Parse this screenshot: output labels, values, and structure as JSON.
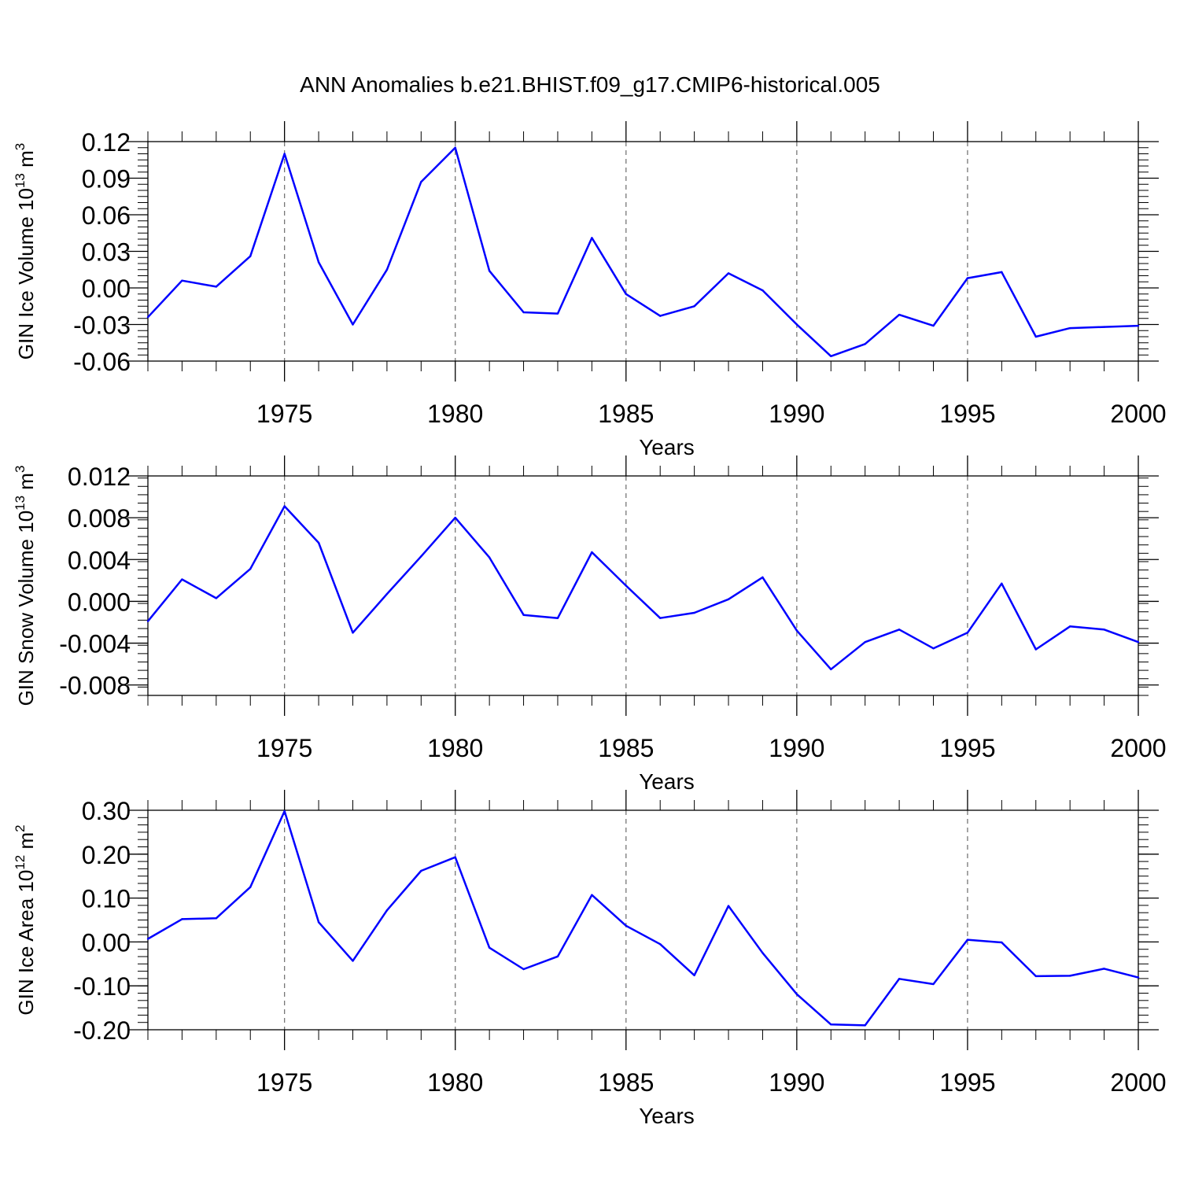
{
  "title": "ANN Anomalies b.e21.BHIST.f09_g17.CMIP6-historical.005",
  "colors": {
    "series": "#0000ff",
    "axes": "#000000",
    "grid": "#777777"
  },
  "chart_data": [
    {
      "type": "line",
      "ylabel": {
        "base": "GIN Ice Volume 10",
        "exp1": "13",
        "unit": " m",
        "exp2": "3"
      },
      "xlabel": "Years",
      "xlim": [
        1971,
        2000
      ],
      "ylim": [
        -0.06,
        0.12
      ],
      "yticks": [
        "0.12",
        "0.09",
        "0.06",
        "0.03",
        "0.00",
        "-0.03",
        "-0.06"
      ],
      "xticks": [
        "1975",
        "1980",
        "1985",
        "1990",
        "1995",
        "2000"
      ],
      "grid": "dashed vertical lines at labeled years",
      "x": [
        1971,
        1972,
        1973,
        1974,
        1975,
        1976,
        1977,
        1978,
        1979,
        1980,
        1981,
        1982,
        1983,
        1984,
        1985,
        1986,
        1987,
        1988,
        1989,
        1990,
        1991,
        1992,
        1993,
        1994,
        1995,
        1996,
        1997,
        1998,
        1999,
        2000
      ],
      "values": [
        -0.024,
        0.006,
        0.001,
        0.026,
        0.11,
        0.021,
        -0.03,
        0.015,
        0.087,
        0.115,
        0.014,
        -0.02,
        -0.021,
        0.041,
        -0.005,
        -0.023,
        -0.015,
        0.012,
        -0.002,
        -0.03,
        -0.056,
        -0.046,
        -0.022,
        -0.031,
        0.008,
        0.013,
        -0.04,
        -0.033,
        -0.032,
        -0.031
      ]
    },
    {
      "type": "line",
      "ylabel": {
        "base": "GIN Snow Volume 10",
        "exp1": "13",
        "unit": " m",
        "exp2": "3"
      },
      "xlabel": "Years",
      "xlim": [
        1971,
        2000
      ],
      "ylim": [
        -0.009,
        0.012
      ],
      "yticks": [
        "0.012",
        "0.008",
        "0.004",
        "0.000",
        "-0.004",
        "-0.008"
      ],
      "xticks": [
        "1975",
        "1980",
        "1985",
        "1990",
        "1995",
        "2000"
      ],
      "grid": "dashed vertical lines at labeled years",
      "x": [
        1971,
        1972,
        1973,
        1974,
        1975,
        1976,
        1977,
        1978,
        1979,
        1980,
        1981,
        1982,
        1983,
        1984,
        1985,
        1986,
        1987,
        1988,
        1989,
        1990,
        1991,
        1992,
        1993,
        1994,
        1995,
        1996,
        1997,
        1998,
        1999,
        2000
      ],
      "values": [
        -0.0019,
        0.0021,
        0.0003,
        0.0031,
        0.0091,
        0.0056,
        -0.003,
        0.0007,
        0.0043,
        0.008,
        0.0042,
        -0.0013,
        -0.0016,
        0.0047,
        0.0015,
        -0.0016,
        -0.0011,
        0.0002,
        0.0023,
        -0.0028,
        -0.0065,
        -0.0039,
        -0.0027,
        -0.0045,
        -0.003,
        0.0017,
        -0.0046,
        -0.0024,
        -0.0027,
        -0.0039
      ]
    },
    {
      "type": "line",
      "ylabel": {
        "base": "GIN Ice Area 10",
        "exp1": "12",
        "unit": " m",
        "exp2": "2"
      },
      "xlabel": "Years",
      "xlim": [
        1971,
        2000
      ],
      "ylim": [
        -0.2,
        0.3
      ],
      "yticks": [
        "0.30",
        "0.20",
        "0.10",
        "0.00",
        "-0.10",
        "-0.20"
      ],
      "xticks": [
        "1975",
        "1980",
        "1985",
        "1990",
        "1995",
        "2000"
      ],
      "grid": "dashed vertical lines at labeled years",
      "x": [
        1971,
        1972,
        1973,
        1974,
        1975,
        1976,
        1977,
        1978,
        1979,
        1980,
        1981,
        1982,
        1983,
        1984,
        1985,
        1986,
        1987,
        1988,
        1989,
        1990,
        1991,
        1992,
        1993,
        1994,
        1995,
        1996,
        1997,
        1998,
        1999,
        2000
      ],
      "values": [
        0.007,
        0.052,
        0.054,
        0.125,
        0.298,
        0.045,
        -0.043,
        0.072,
        0.162,
        0.193,
        -0.013,
        -0.062,
        -0.033,
        0.107,
        0.037,
        -0.005,
        -0.076,
        0.082,
        -0.025,
        -0.119,
        -0.188,
        -0.19,
        -0.084,
        -0.096,
        0.005,
        -0.001,
        -0.078,
        -0.077,
        -0.061,
        -0.081
      ]
    }
  ]
}
